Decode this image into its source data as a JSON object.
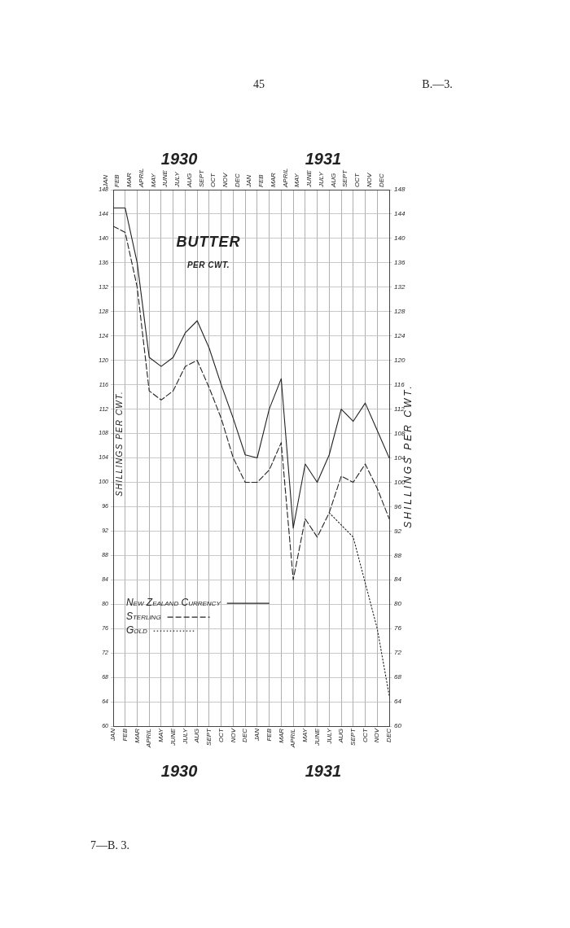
{
  "chart_data": {
    "type": "line",
    "title": "BUTTER",
    "subtitle": "PER CWT.",
    "ylabel": "SHILLINGS PER CWT.",
    "y2label": "SHILLINGS PER CWT.",
    "annotations": [
      "45",
      "B.—3.",
      "1930",
      "1931",
      "1930",
      "1931",
      "7—B. 3."
    ],
    "x": [
      "1930-01",
      "1930-02",
      "1930-03",
      "1930-04",
      "1930-05",
      "1930-06",
      "1930-07",
      "1930-08",
      "1930-09",
      "1930-10",
      "1930-11",
      "1930-12",
      "1931-01",
      "1931-02",
      "1931-03",
      "1931-04",
      "1931-05",
      "1931-06",
      "1931-07",
      "1931-08",
      "1931-09",
      "1931-10",
      "1931-11",
      "1931-12"
    ],
    "xlim": [
      "1930-01",
      "1931-12"
    ],
    "xticks": [
      {
        "value": "1930-01",
        "label": "JAN"
      },
      {
        "value": "1930-02",
        "label": "FEB"
      },
      {
        "value": "1930-03",
        "label": "MAR"
      },
      {
        "value": "1930-04",
        "label": "APRIL"
      },
      {
        "value": "1930-05",
        "label": "MAY"
      },
      {
        "value": "1930-06",
        "label": "JUNE"
      },
      {
        "value": "1930-07",
        "label": "JULY"
      },
      {
        "value": "1930-08",
        "label": "AUG"
      },
      {
        "value": "1930-09",
        "label": "SEPT"
      },
      {
        "value": "1930-10",
        "label": "OCT"
      },
      {
        "value": "1930-11",
        "label": "NOV"
      },
      {
        "value": "1930-12",
        "label": "DEC"
      },
      {
        "value": "1931-01",
        "label": "JAN"
      },
      {
        "value": "1931-02",
        "label": "FEB"
      },
      {
        "value": "1931-03",
        "label": "MAR"
      },
      {
        "value": "1931-04",
        "label": "APRIL"
      },
      {
        "value": "1931-05",
        "label": "MAY"
      },
      {
        "value": "1931-06",
        "label": "JUNE"
      },
      {
        "value": "1931-07",
        "label": "JULY"
      },
      {
        "value": "1931-08",
        "label": "AUG"
      },
      {
        "value": "1931-09",
        "label": "SEPT"
      },
      {
        "value": "1931-10",
        "label": "OCT"
      },
      {
        "value": "1931-11",
        "label": "NOV"
      },
      {
        "value": "1931-12",
        "label": "DEC"
      }
    ],
    "ylim": [
      60,
      148
    ],
    "yticks": [
      60,
      64,
      68,
      72,
      76,
      80,
      84,
      88,
      92,
      96,
      100,
      104,
      108,
      112,
      116,
      120,
      124,
      128,
      132,
      136,
      140,
      144,
      148
    ],
    "y2lim": [
      60,
      148
    ],
    "y2ticks": [
      60,
      64,
      68,
      72,
      76,
      80,
      84,
      88,
      92,
      96,
      100,
      104,
      108,
      112,
      116,
      120,
      124,
      128,
      132,
      136,
      140,
      144,
      148
    ],
    "series": [
      {
        "name": "New Zealand Currency",
        "color": "#222222",
        "line_style": "solid",
        "values": [
          145,
          145,
          136,
          120.5,
          119,
          120.5,
          124.5,
          126.5,
          122,
          116,
          110.5,
          104.5,
          104,
          112,
          117,
          92.5,
          103,
          100,
          104.5,
          112,
          110,
          113,
          108.5,
          104
        ]
      },
      {
        "name": "Sterling",
        "color": "#222222",
        "line_style": "dashed",
        "values": [
          142,
          141,
          132,
          115,
          113.5,
          115,
          119,
          120,
          115.5,
          110.5,
          104,
          100,
          100,
          102,
          106.5,
          84,
          94,
          91,
          95,
          101,
          100,
          103,
          99,
          94
        ]
      },
      {
        "name": "Gold",
        "color": "#222222",
        "line_style": "dotted",
        "values": [
          null,
          null,
          null,
          null,
          null,
          null,
          null,
          null,
          null,
          null,
          null,
          null,
          null,
          null,
          null,
          null,
          null,
          null,
          95,
          93,
          91,
          83.5,
          76,
          65
        ]
      }
    ],
    "grid": true,
    "legend": "bottom left"
  }
}
